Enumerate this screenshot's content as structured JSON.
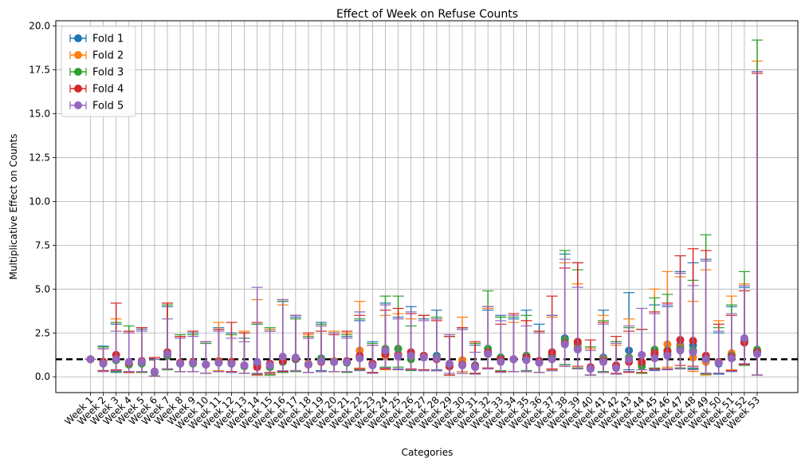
{
  "chart_data": {
    "type": "errorbar",
    "title": "Effect of Week on Refuse Counts",
    "xlabel": "Categories",
    "ylabel": "Multiplicative Effect on Counts",
    "ylim": [
      -0.9,
      20.3
    ],
    "yticks": [
      0.0,
      2.5,
      5.0,
      7.5,
      10.0,
      12.5,
      15.0,
      17.5,
      20.0
    ],
    "ytick_labels": [
      "0.0",
      "2.5",
      "5.0",
      "7.5",
      "10.0",
      "12.5",
      "15.0",
      "17.5",
      "20.0"
    ],
    "grid": true,
    "legend_position": "top-left",
    "reference_line": 1.0,
    "categories": [
      "Week 1",
      "Week 2",
      "Week 3",
      "Week 4",
      "Week 5",
      "Week 6",
      "Week 7",
      "Week 8",
      "Week 9",
      "Week 10",
      "Week 11",
      "Week 12",
      "Week 13",
      "Week 14",
      "Week 15",
      "Week 16",
      "Week 17",
      "Week 18",
      "Week 19",
      "Week 20",
      "Week 21",
      "Week 22",
      "Week 23",
      "Week 24",
      "Week 25",
      "Week 26",
      "Week 27",
      "Week 28",
      "Week 29",
      "Week 30",
      "Week 31",
      "Week 32",
      "Week 33",
      "Week 34",
      "Week 35",
      "Week 36",
      "Week 37",
      "Week 38",
      "Week 39",
      "Week 40",
      "Week 41",
      "Week 42",
      "Week 43",
      "Week 44",
      "Week 45",
      "Week 46",
      "Week 47",
      "Week 48",
      "Week 49",
      "Week 50",
      "Week 51",
      "Week 52",
      "Week 53"
    ],
    "series": [
      {
        "name": "Fold 1",
        "color": "#1f77b4",
        "values": [
          1.0,
          0.85,
          0.95,
          0.75,
          0.8,
          0.25,
          1.2,
          0.75,
          0.8,
          0.7,
          0.8,
          0.75,
          0.65,
          0.7,
          0.55,
          0.85,
          1.0,
          0.7,
          1.05,
          0.85,
          0.85,
          1.1,
          0.7,
          1.4,
          1.3,
          1.2,
          1.1,
          1.2,
          0.6,
          0.7,
          0.65,
          1.4,
          1.1,
          1.0,
          1.2,
          0.9,
          1.2,
          2.2,
          1.85,
          0.5,
          1.1,
          0.55,
          1.5,
          0.7,
          1.25,
          1.3,
          1.8,
          1.8,
          1.1,
          0.75,
          1.2,
          2.0,
          1.45
        ],
        "lower": [
          1.0,
          0.35,
          0.25,
          0.25,
          0.25,
          0.05,
          0.4,
          0.3,
          0.3,
          0.2,
          0.3,
          0.25,
          0.2,
          0.15,
          0.1,
          0.25,
          0.3,
          0.25,
          0.35,
          0.3,
          0.3,
          0.4,
          0.2,
          0.5,
          0.45,
          0.4,
          0.35,
          0.4,
          0.1,
          0.2,
          0.2,
          0.5,
          0.3,
          0.3,
          0.35,
          0.25,
          0.35,
          0.7,
          0.5,
          0.1,
          0.3,
          0.15,
          0.4,
          0.2,
          0.4,
          0.4,
          0.5,
          0.5,
          0.2,
          0.15,
          0.3,
          0.7,
          0.1
        ],
        "upper": [
          1.0,
          1.75,
          3.0,
          2.6,
          2.7,
          1.0,
          4.0,
          2.3,
          2.5,
          1.9,
          2.8,
          2.5,
          2.2,
          3.0,
          2.7,
          4.3,
          3.4,
          2.2,
          3.1,
          2.5,
          2.3,
          3.2,
          2.0,
          4.2,
          3.4,
          4.0,
          3.3,
          3.8,
          2.3,
          2.7,
          1.8,
          3.8,
          3.5,
          3.3,
          3.8,
          3.0,
          3.5,
          7.0,
          6.5,
          1.7,
          3.8,
          2.0,
          4.8,
          2.7,
          4.1,
          4.0,
          6.0,
          6.5,
          6.7,
          2.5,
          4.0,
          5.1,
          17.4
        ]
      },
      {
        "name": "Fold 2",
        "color": "#ff7f0e",
        "values": [
          1.0,
          0.8,
          1.0,
          0.7,
          0.8,
          0.3,
          1.3,
          0.8,
          0.8,
          0.7,
          0.9,
          0.8,
          0.65,
          0.7,
          0.6,
          0.9,
          1.05,
          0.75,
          1.0,
          0.9,
          0.85,
          1.5,
          0.7,
          1.2,
          1.25,
          1.25,
          1.2,
          1.1,
          0.6,
          0.95,
          0.6,
          1.3,
          1.0,
          1.0,
          1.0,
          0.8,
          1.3,
          2.0,
          1.7,
          0.5,
          1.0,
          0.6,
          1.1,
          0.7,
          1.35,
          1.85,
          1.7,
          1.1,
          0.85,
          0.8,
          1.35,
          2.1,
          1.4
        ],
        "lower": [
          1.0,
          0.3,
          0.3,
          0.25,
          0.25,
          0.05,
          0.45,
          0.3,
          0.3,
          0.2,
          0.35,
          0.25,
          0.2,
          0.15,
          0.15,
          0.3,
          0.35,
          0.25,
          0.3,
          0.3,
          0.3,
          0.5,
          0.2,
          0.4,
          0.4,
          0.4,
          0.4,
          0.35,
          0.1,
          0.3,
          0.2,
          0.45,
          0.3,
          0.3,
          0.3,
          0.25,
          0.4,
          0.6,
          0.5,
          0.1,
          0.3,
          0.15,
          0.3,
          0.2,
          0.45,
          0.55,
          0.5,
          0.3,
          0.1,
          0.2,
          0.4,
          0.7,
          0.1
        ],
        "upper": [
          1.0,
          1.6,
          3.3,
          2.5,
          2.8,
          1.1,
          4.2,
          2.3,
          2.6,
          2.0,
          3.1,
          2.4,
          2.6,
          4.4,
          2.7,
          4.1,
          3.5,
          2.4,
          2.9,
          2.6,
          2.5,
          4.3,
          1.8,
          3.5,
          3.6,
          3.3,
          3.5,
          3.3,
          2.4,
          3.4,
          1.9,
          3.9,
          3.4,
          3.1,
          3.2,
          2.5,
          3.4,
          6.5,
          5.3,
          1.6,
          3.5,
          1.8,
          3.3,
          2.7,
          5.0,
          6.0,
          5.7,
          4.3,
          6.1,
          3.2,
          4.6,
          5.3,
          18.0
        ]
      },
      {
        "name": "Fold 3",
        "color": "#2ca02c",
        "values": [
          1.0,
          0.85,
          0.95,
          0.7,
          0.75,
          0.25,
          1.2,
          0.75,
          0.75,
          0.7,
          0.8,
          0.75,
          0.6,
          0.7,
          0.55,
          0.85,
          1.0,
          0.7,
          1.0,
          0.85,
          0.8,
          1.1,
          0.75,
          1.6,
          1.6,
          1.0,
          1.2,
          1.1,
          0.6,
          0.7,
          0.6,
          1.6,
          1.1,
          1.0,
          1.2,
          0.85,
          1.15,
          2.1,
          1.6,
          0.5,
          0.95,
          0.6,
          1.1,
          0.6,
          1.55,
          1.5,
          1.6,
          1.5,
          1.1,
          0.8,
          1.2,
          2.1,
          1.55
        ],
        "lower": [
          1.0,
          0.35,
          0.3,
          0.25,
          0.25,
          0.05,
          0.4,
          0.3,
          0.3,
          0.2,
          0.3,
          0.25,
          0.2,
          0.15,
          0.1,
          0.25,
          0.3,
          0.25,
          0.3,
          0.3,
          0.25,
          0.4,
          0.25,
          0.55,
          0.55,
          0.35,
          0.4,
          0.35,
          0.1,
          0.2,
          0.2,
          0.5,
          0.35,
          0.3,
          0.35,
          0.25,
          0.35,
          0.7,
          0.5,
          0.1,
          0.3,
          0.15,
          0.3,
          0.2,
          0.5,
          0.45,
          0.5,
          0.45,
          0.15,
          0.2,
          0.35,
          0.65,
          0.1
        ],
        "upper": [
          1.0,
          1.7,
          3.1,
          2.9,
          2.8,
          1.0,
          4.1,
          2.4,
          2.4,
          1.9,
          2.7,
          2.4,
          2.5,
          3.0,
          2.8,
          4.3,
          3.3,
          2.3,
          3.0,
          2.5,
          2.4,
          3.3,
          1.9,
          4.6,
          4.6,
          2.9,
          3.5,
          3.4,
          2.3,
          2.8,
          1.9,
          4.9,
          3.4,
          3.4,
          3.5,
          2.6,
          3.5,
          7.2,
          6.1,
          1.7,
          3.2,
          2.0,
          2.8,
          2.7,
          4.5,
          4.7,
          5.9,
          5.5,
          8.1,
          2.8,
          4.1,
          6.0,
          19.2
        ]
      },
      {
        "name": "Fold 4",
        "color": "#d62728",
        "values": [
          1.0,
          0.85,
          1.25,
          0.8,
          0.9,
          0.3,
          1.4,
          0.8,
          0.85,
          0.7,
          0.85,
          0.85,
          0.65,
          0.55,
          0.75,
          0.9,
          1.05,
          0.7,
          0.85,
          0.85,
          0.9,
          1.2,
          0.75,
          1.3,
          1.2,
          1.4,
          1.2,
          1.0,
          0.6,
          0.7,
          0.6,
          1.4,
          1.0,
          1.0,
          1.1,
          0.9,
          1.4,
          1.9,
          2.0,
          0.55,
          0.9,
          0.65,
          0.85,
          0.85,
          1.35,
          1.45,
          2.1,
          2.05,
          1.2,
          0.85,
          1.15,
          1.95,
          1.4
        ],
        "lower": [
          1.0,
          0.35,
          0.4,
          0.25,
          0.3,
          0.05,
          0.45,
          0.3,
          0.3,
          0.2,
          0.3,
          0.3,
          0.2,
          0.1,
          0.25,
          0.3,
          0.35,
          0.25,
          0.3,
          0.3,
          0.3,
          0.45,
          0.25,
          0.45,
          0.4,
          0.45,
          0.4,
          0.35,
          0.1,
          0.2,
          0.2,
          0.5,
          0.3,
          0.3,
          0.3,
          0.25,
          0.45,
          0.6,
          0.6,
          0.1,
          0.25,
          0.2,
          0.25,
          0.25,
          0.45,
          0.45,
          0.65,
          0.6,
          0.2,
          0.2,
          0.35,
          0.7,
          0.1
        ],
        "upper": [
          1.0,
          1.6,
          4.2,
          2.6,
          2.8,
          1.1,
          4.2,
          2.3,
          2.6,
          2.0,
          2.7,
          3.1,
          2.5,
          3.1,
          2.6,
          4.4,
          3.5,
          2.5,
          2.6,
          2.4,
          2.6,
          3.5,
          1.8,
          3.8,
          3.9,
          3.6,
          3.5,
          3.2,
          2.3,
          2.8,
          2.0,
          4.0,
          3.0,
          3.6,
          3.2,
          2.6,
          4.6,
          6.2,
          6.5,
          2.1,
          3.1,
          2.3,
          2.6,
          2.7,
          3.7,
          4.2,
          6.9,
          7.3,
          7.2,
          3.0,
          3.5,
          4.9,
          17.3
        ]
      },
      {
        "name": "Fold 5",
        "color": "#9467bd",
        "values": [
          1.0,
          0.75,
          1.0,
          0.85,
          0.85,
          0.3,
          1.3,
          0.75,
          0.8,
          0.7,
          0.8,
          0.75,
          0.65,
          0.85,
          0.65,
          1.15,
          1.1,
          0.7,
          0.9,
          0.85,
          0.85,
          1.05,
          0.65,
          1.5,
          1.15,
          1.2,
          1.1,
          1.05,
          0.75,
          0.65,
          0.55,
          1.3,
          0.85,
          1.0,
          0.95,
          0.8,
          1.0,
          1.85,
          1.55,
          0.45,
          0.85,
          0.5,
          1.0,
          1.25,
          1.05,
          1.2,
          1.5,
          1.4,
          1.0,
          0.8,
          1.05,
          2.2,
          1.3
        ],
        "lower": [
          1.0,
          0.3,
          0.35,
          0.3,
          0.3,
          0.05,
          0.45,
          0.3,
          0.3,
          0.2,
          0.3,
          0.25,
          0.2,
          0.2,
          0.2,
          0.35,
          0.35,
          0.25,
          0.3,
          0.3,
          0.3,
          0.35,
          0.2,
          0.5,
          0.4,
          0.4,
          0.35,
          0.35,
          0.2,
          0.2,
          0.15,
          0.45,
          0.25,
          0.3,
          0.3,
          0.25,
          0.35,
          0.6,
          0.45,
          0.1,
          0.25,
          0.15,
          0.3,
          0.4,
          0.35,
          0.4,
          0.45,
          0.4,
          0.2,
          0.2,
          0.3,
          0.75,
          0.1
        ],
        "upper": [
          1.0,
          1.6,
          2.6,
          2.5,
          2.6,
          1.0,
          3.3,
          2.2,
          2.3,
          2.0,
          2.6,
          2.2,
          2.0,
          5.1,
          2.6,
          4.4,
          3.5,
          2.2,
          2.9,
          2.5,
          2.2,
          3.7,
          1.8,
          4.1,
          3.3,
          3.7,
          3.2,
          3.3,
          2.4,
          2.7,
          1.4,
          4.0,
          3.2,
          3.5,
          2.9,
          2.5,
          3.5,
          6.7,
          5.1,
          1.5,
          3.0,
          1.9,
          2.9,
          3.9,
          3.6,
          4.1,
          5.9,
          5.2,
          6.6,
          2.6,
          3.6,
          5.2,
          17.4
        ]
      }
    ]
  }
}
